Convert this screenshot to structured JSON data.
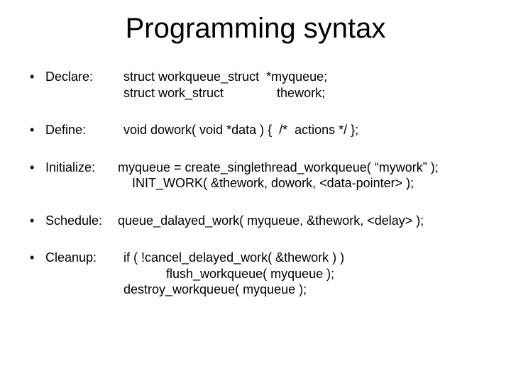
{
  "title": "Programming syntax",
  "items": {
    "declare": {
      "label": "Declare:",
      "code": "struct workqueue_struct  *myqueue;\nstruct work_struct               thework;"
    },
    "define": {
      "label": "Define:",
      "code": "void dowork( void *data ) {  /*  actions */ };"
    },
    "initialize": {
      "label": "Initialize:",
      "code": "myqueue = create_singlethread_workqueue( “mywork” );\n    INIT_WORK( &thework, dowork, <data-pointer> );"
    },
    "schedule": {
      "label": "Schedule:",
      "code": "queue_dalayed_work( myqueue, &thework, <delay> );"
    },
    "cleanup": {
      "label": "Cleanup:",
      "code": "if ( !cancel_delayed_work( &thework ) )\n            flush_workqueue( myqueue );\ndestroy_workqueue( myqueue );"
    }
  }
}
